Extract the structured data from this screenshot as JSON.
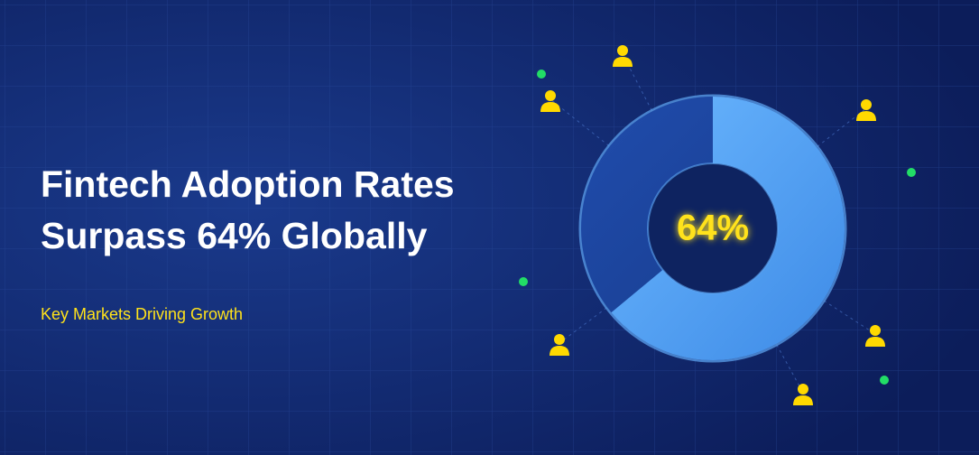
{
  "title": {
    "lines": [
      "Fintech Adoption Rates",
      "Surpass 64% Globally"
    ]
  },
  "subtitle": "Key Markets Driving Growth",
  "donut": {
    "value": 64,
    "label": "64%"
  }
}
